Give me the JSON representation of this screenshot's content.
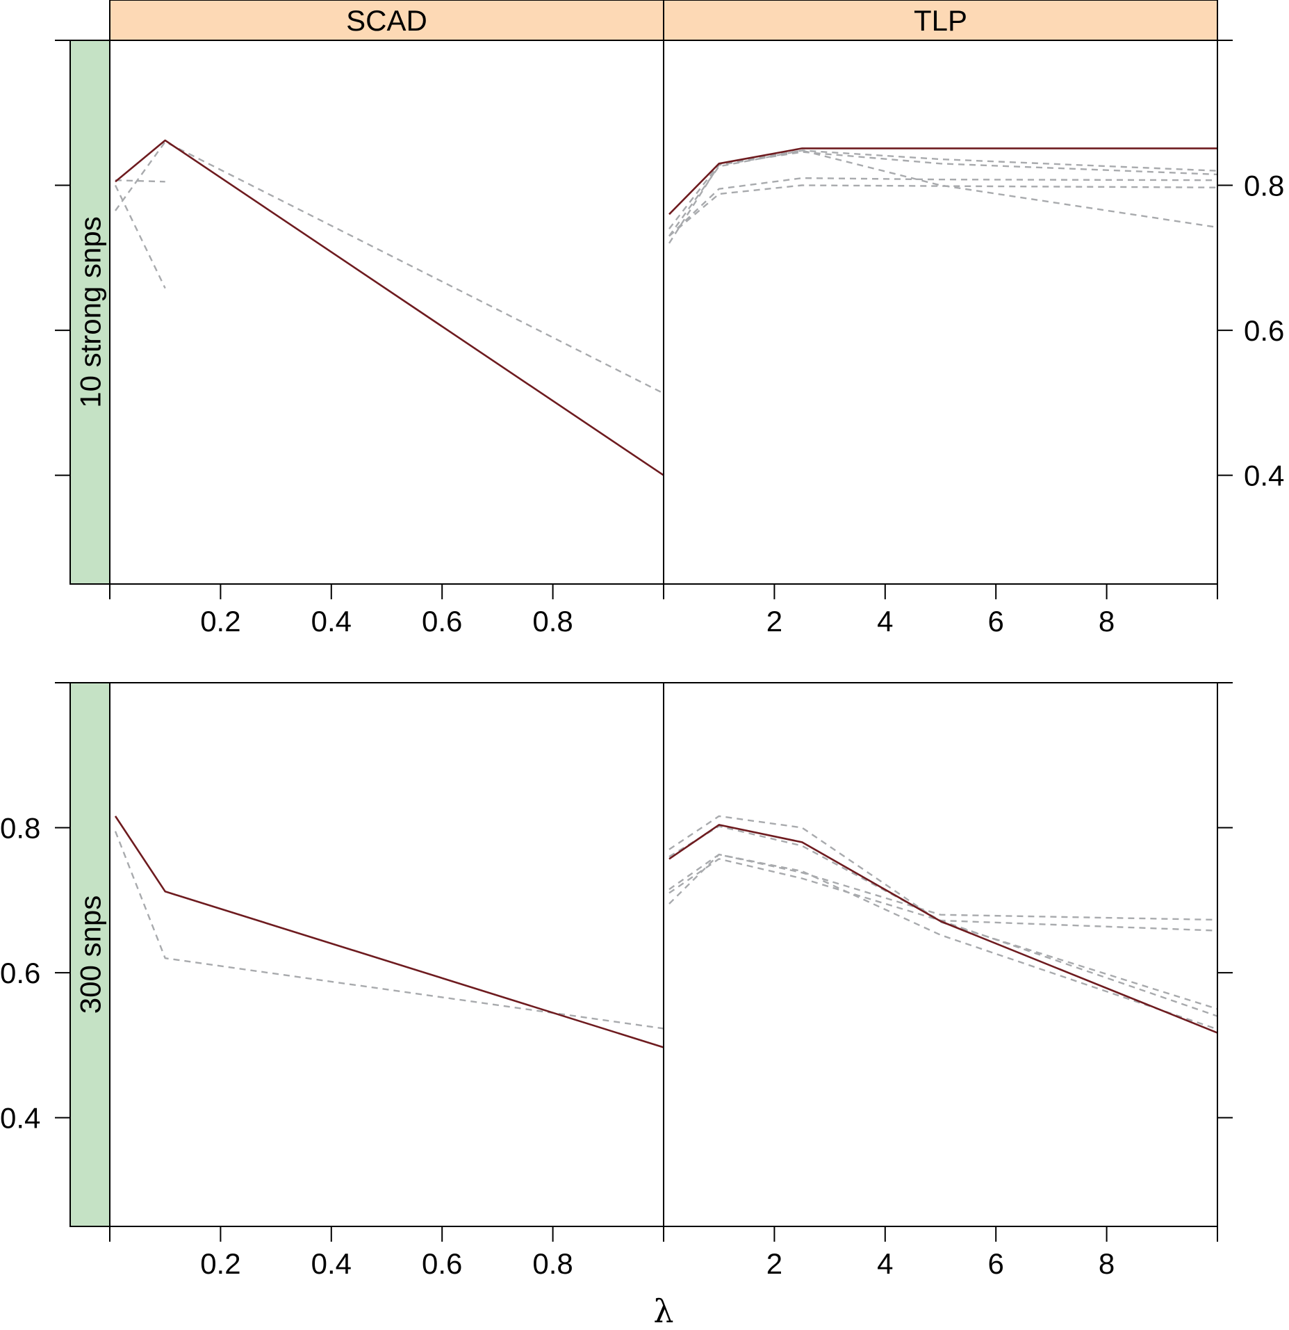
{
  "chart_data": {
    "type": "line",
    "layout": "2x2 trellis (lattice)",
    "xlabel": "λ",
    "ylabel": "",
    "column_strips": [
      "SCAD",
      "TLP"
    ],
    "row_strips": [
      "10 strong snps",
      "300 snps"
    ],
    "colors": {
      "column_strip_fill": "#fdd9b5",
      "row_strip_fill": "#c5e2c5",
      "main_series": "#6e1b1f",
      "other_series": "#a8aaad"
    },
    "ylim": [
      0.25,
      1.0
    ],
    "y_ticks": [
      0.4,
      0.6,
      0.8
    ],
    "y_tick_labels": [
      "0.4",
      "0.6",
      "0.8"
    ],
    "panels": [
      {
        "column": "SCAD",
        "row": "10 strong snps",
        "xlim": [
          0,
          1.0
        ],
        "x_ticks": [
          0.2,
          0.4,
          0.6,
          0.8
        ],
        "x_tick_labels": [
          "0.2",
          "0.4",
          "0.6",
          "0.8"
        ],
        "series": [
          {
            "style": "solid",
            "x": [
              0.01,
              0.1,
              1.0
            ],
            "y": [
              0.805,
              0.862,
              0.4
            ]
          },
          {
            "style": "dashed",
            "x": [
              0.01,
              0.1,
              1.0
            ],
            "y": [
              0.765,
              0.86,
              0.513
            ]
          },
          {
            "style": "dashed",
            "x": [
              0.01,
              0.1
            ],
            "y": [
              0.807,
              0.805
            ]
          },
          {
            "style": "dashed",
            "x": [
              0.01,
              0.1
            ],
            "y": [
              0.8,
              0.658
            ]
          }
        ]
      },
      {
        "column": "TLP",
        "row": "10 strong snps",
        "xlim": [
          0,
          10
        ],
        "x_ticks": [
          2,
          4,
          6,
          8
        ],
        "x_tick_labels": [
          "2",
          "4",
          "6",
          "8"
        ],
        "series": [
          {
            "style": "solid",
            "x": [
              0.1,
              1,
              2.5,
              5,
              10
            ],
            "y": [
              0.76,
              0.83,
              0.851,
              0.851,
              0.851
            ]
          },
          {
            "style": "dashed",
            "x": [
              0.1,
              1,
              2.5,
              5,
              10
            ],
            "y": [
              0.73,
              0.826,
              0.848,
              0.836,
              0.82
            ]
          },
          {
            "style": "dashed",
            "x": [
              0.1,
              1,
              2.5,
              5,
              10
            ],
            "y": [
              0.72,
              0.828,
              0.846,
              0.83,
              0.815
            ]
          },
          {
            "style": "dashed",
            "x": [
              0.1,
              1,
              2.5,
              5,
              10
            ],
            "y": [
              0.74,
              0.829,
              0.848,
              0.8,
              0.742
            ]
          },
          {
            "style": "dashed",
            "x": [
              0.1,
              1,
              2.5,
              5,
              10
            ],
            "y": [
              0.73,
              0.795,
              0.81,
              0.808,
              0.807
            ]
          },
          {
            "style": "dashed",
            "x": [
              0.1,
              1,
              2.5,
              5,
              10
            ],
            "y": [
              0.73,
              0.788,
              0.8,
              0.799,
              0.797
            ]
          }
        ]
      },
      {
        "column": "SCAD",
        "row": "300 snps",
        "xlim": [
          0,
          1.0
        ],
        "x_ticks": [
          0.2,
          0.4,
          0.6,
          0.8
        ],
        "x_tick_labels": [
          "0.2",
          "0.4",
          "0.6",
          "0.8"
        ],
        "series": [
          {
            "style": "solid",
            "x": [
              0.01,
              0.1,
              1.0
            ],
            "y": [
              0.816,
              0.712,
              0.497
            ]
          },
          {
            "style": "dashed",
            "x": [
              0.01,
              0.1,
              1.0
            ],
            "y": [
              0.795,
              0.62,
              0.523
            ]
          }
        ]
      },
      {
        "column": "TLP",
        "row": "300 snps",
        "xlim": [
          0,
          10
        ],
        "x_ticks": [
          2,
          4,
          6,
          8
        ],
        "x_tick_labels": [
          "2",
          "4",
          "6",
          "8"
        ],
        "series": [
          {
            "style": "solid",
            "x": [
              0.1,
              1,
              2.5,
              5,
              10
            ],
            "y": [
              0.757,
              0.804,
              0.78,
              0.671,
              0.517
            ]
          },
          {
            "style": "dashed",
            "x": [
              0.1,
              1,
              2.5,
              5,
              10
            ],
            "y": [
              0.77,
              0.816,
              0.8,
              0.67,
              0.55
            ]
          },
          {
            "style": "dashed",
            "x": [
              0.1,
              1,
              2.5,
              5,
              10
            ],
            "y": [
              0.76,
              0.802,
              0.775,
              0.672,
              0.54
            ]
          },
          {
            "style": "dashed",
            "x": [
              0.1,
              1,
              2.5,
              5,
              10
            ],
            "y": [
              0.715,
              0.763,
              0.738,
              0.68,
              0.673
            ]
          },
          {
            "style": "dashed",
            "x": [
              0.1,
              1,
              2.5,
              5,
              10
            ],
            "y": [
              0.71,
              0.757,
              0.73,
              0.672,
              0.658
            ]
          },
          {
            "style": "dashed",
            "x": [
              0.1,
              1,
              2.5,
              5,
              10
            ],
            "y": [
              0.695,
              0.763,
              0.74,
              0.652,
              0.522
            ]
          }
        ]
      }
    ]
  }
}
